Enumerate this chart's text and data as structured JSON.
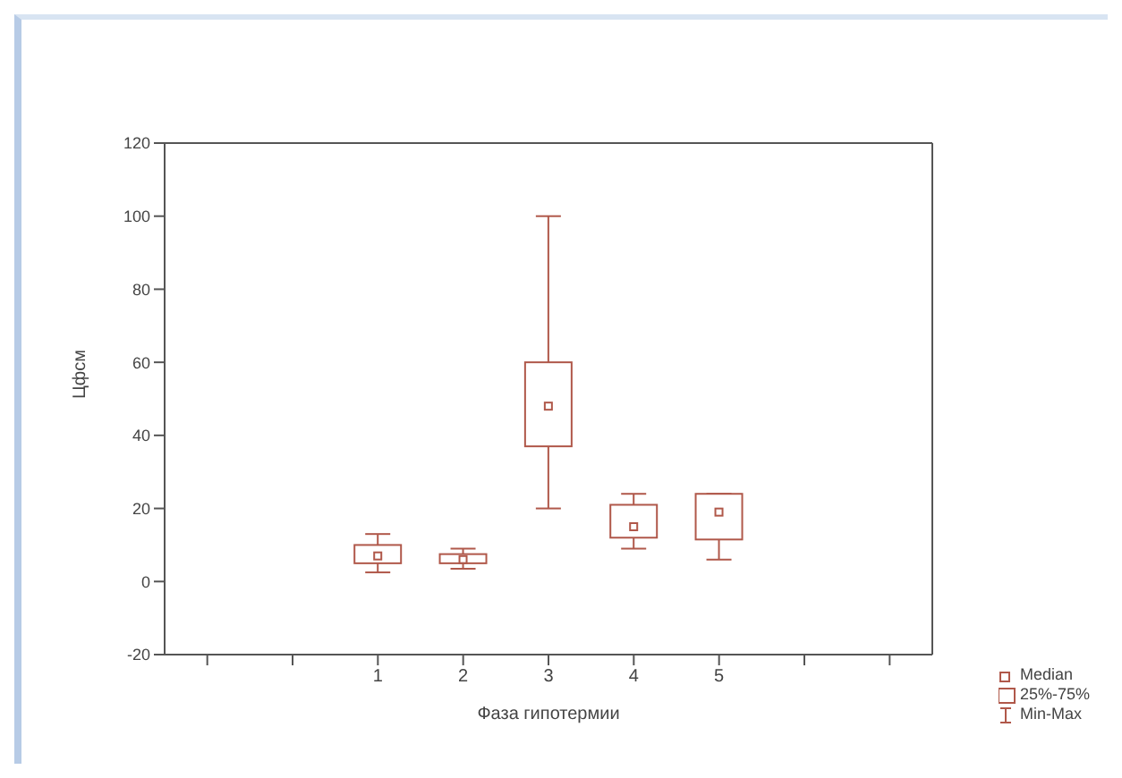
{
  "chart_data": {
    "type": "box",
    "xlabel": "Фаза гипотермии",
    "ylabel": "Цфсм",
    "categories": [
      null,
      null,
      "1",
      "2",
      "3",
      "4",
      "5",
      null,
      null
    ],
    "color": "#b0584a",
    "boxes": [
      null,
      null,
      {
        "low": 2.5,
        "q1": 5,
        "median": 7,
        "q3": 10,
        "high": 13
      },
      {
        "low": 3.5,
        "q1": 5,
        "median": 6,
        "q3": 7.5,
        "high": 9
      },
      {
        "low": 20,
        "q1": 37,
        "median": 48,
        "q3": 60,
        "high": 100
      },
      {
        "low": 9,
        "q1": 12,
        "median": 15,
        "q3": 21,
        "high": 24
      },
      {
        "low": 6,
        "q1": 11.5,
        "median": 19,
        "q3": 24,
        "high": 24
      },
      null,
      null
    ],
    "ylim": [
      -20,
      120
    ],
    "yticks": [
      -20,
      0,
      20,
      40,
      60,
      80,
      100,
      120
    ],
    "annotations": [
      "Median",
      "25%-75%",
      "Min-Max"
    ]
  }
}
